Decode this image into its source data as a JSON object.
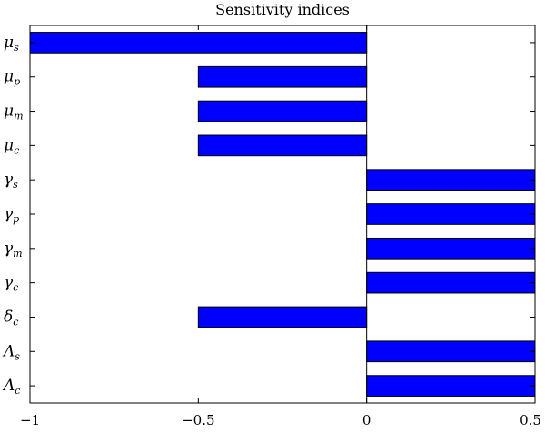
{
  "chart_data": {
    "type": "bar",
    "orientation": "horizontal",
    "title": "Sensitivity indices",
    "xlabel": "",
    "ylabel": "",
    "xlim": [
      -1,
      0.5
    ],
    "xticks": [
      -1,
      -0.5,
      0,
      0.5
    ],
    "xtick_labels": [
      "−1",
      "−0.5",
      "0",
      "0.5"
    ],
    "grid": false,
    "categories": [
      {
        "symbol": "μ",
        "sub": "s"
      },
      {
        "symbol": "μ",
        "sub": "p"
      },
      {
        "symbol": "μ",
        "sub": "m"
      },
      {
        "symbol": "μ",
        "sub": "c"
      },
      {
        "symbol": "γ",
        "sub": "s"
      },
      {
        "symbol": "γ",
        "sub": "p"
      },
      {
        "symbol": "γ",
        "sub": "m"
      },
      {
        "symbol": "γ",
        "sub": "c"
      },
      {
        "symbol": "δ",
        "sub": "c"
      },
      {
        "symbol": "Λ",
        "sub": "s"
      },
      {
        "symbol": "Λ",
        "sub": "c"
      }
    ],
    "values": [
      -1,
      -0.5,
      -0.5,
      -0.5,
      0.5,
      0.5,
      0.5,
      0.5,
      -0.5,
      0.5,
      0.5
    ],
    "bar_color": "#0000ff",
    "bar_edge_color": "#000000"
  }
}
